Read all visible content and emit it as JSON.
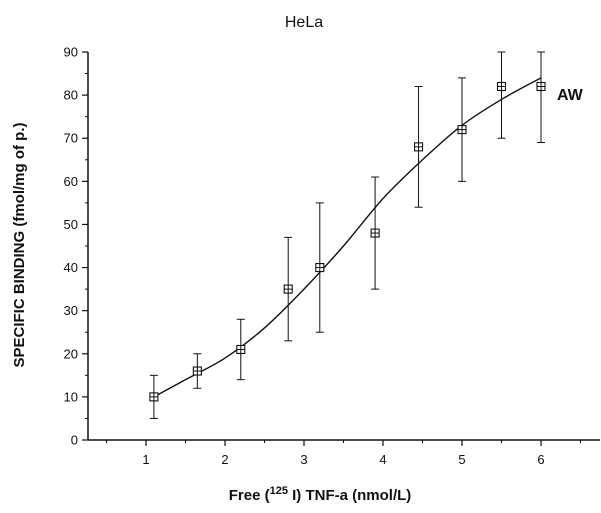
{
  "chart_data": {
    "type": "scatter",
    "title": "HeLa",
    "xlabel": {
      "prefix": "Free (",
      "superscript": "125",
      "suffix": " I) TNF-a (nmol/L)"
    },
    "ylabel": "SPECIFIC BINDING (fmol/mg of p.)",
    "xlim": [
      0.5,
      6.5
    ],
    "ylim": [
      0,
      90
    ],
    "x_ticks": [
      "1",
      "2",
      "3",
      "4",
      "5",
      "6"
    ],
    "x_tick_values": [
      1,
      2,
      3,
      4,
      5,
      6
    ],
    "y_ticks": [
      "0",
      "10",
      "20",
      "30",
      "40",
      "50",
      "60",
      "70",
      "80",
      "90"
    ],
    "y_tick_values": [
      0,
      10,
      20,
      30,
      40,
      50,
      60,
      70,
      80,
      90
    ],
    "grid": false,
    "series": [
      {
        "name": "AW",
        "marker": "square-with-cross",
        "x": [
          1.1,
          1.65,
          2.2,
          2.8,
          3.2,
          3.9,
          4.45,
          5.0,
          5.5,
          6.0
        ],
        "y": [
          10,
          16,
          21,
          35,
          40,
          48,
          68,
          72,
          82,
          82
        ],
        "error_high": [
          15,
          20,
          28,
          47,
          55,
          61,
          82,
          84,
          90,
          90
        ],
        "error_low": [
          5,
          12,
          14,
          23,
          25,
          35,
          54,
          60,
          70,
          69
        ],
        "fit_curve": {
          "x": [
            1.1,
            1.5,
            2.0,
            2.5,
            3.0,
            3.5,
            4.0,
            4.5,
            5.0,
            5.5,
            6.0
          ],
          "y": [
            10,
            14,
            19,
            26,
            35,
            45,
            56,
            65,
            73,
            79,
            84
          ]
        }
      }
    ]
  }
}
